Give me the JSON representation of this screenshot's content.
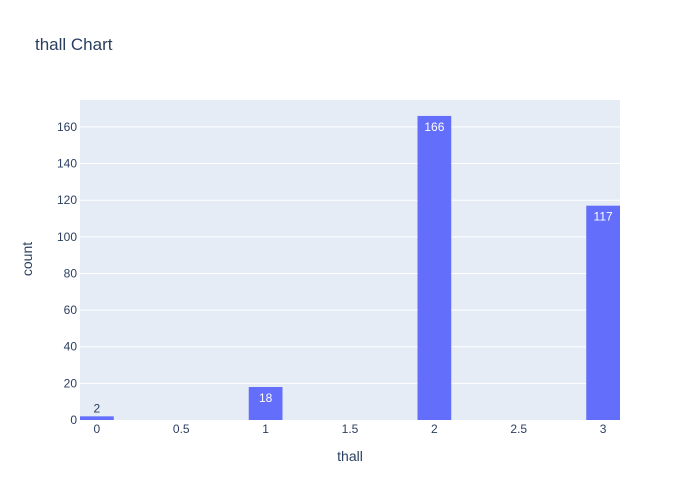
{
  "chart_data": {
    "type": "bar",
    "title": "thall Chart",
    "xlabel": "thall",
    "ylabel": "count",
    "x": [
      0,
      1,
      2,
      3
    ],
    "values": [
      2,
      18,
      166,
      117
    ],
    "xlim": [
      -0.1,
      3.1
    ],
    "ylim": [
      0,
      174.7
    ],
    "x_ticks": [
      0,
      0.5,
      1,
      1.5,
      2,
      2.5,
      3
    ],
    "x_tick_labels": [
      "0",
      "0.5",
      "1",
      "1.5",
      "2",
      "2.5",
      "3"
    ],
    "y_ticks": [
      0,
      20,
      40,
      60,
      80,
      100,
      120,
      140,
      160
    ],
    "y_tick_labels": [
      "0",
      "20",
      "40",
      "60",
      "80",
      "100",
      "120",
      "140",
      "160"
    ],
    "data_labels": [
      "2",
      "18",
      "166",
      "117"
    ],
    "grid": true,
    "legend": "none",
    "colors": {
      "bar": "#636efa",
      "plot_background": "#e5ecf6",
      "grid": "#ffffff",
      "text": "#2a3f5f",
      "label_inside": "#ffffff"
    }
  }
}
